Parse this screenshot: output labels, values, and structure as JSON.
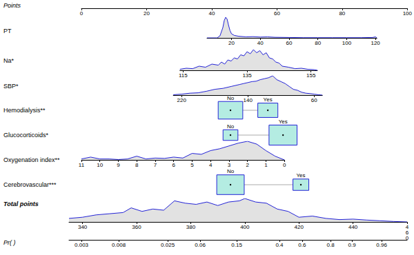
{
  "chart_data": {
    "type": "nomogram",
    "color": "#2323d6",
    "points_axis": {
      "label": "Points",
      "xlim": [
        0,
        100
      ],
      "xticks": [
        0,
        20,
        40,
        60,
        80,
        100
      ]
    },
    "variables": [
      {
        "label": "PT",
        "type": "continuous",
        "xlim": [
          3,
          121
        ],
        "xticks": [
          20,
          40,
          60,
          80,
          100,
          120
        ],
        "points": [
          38.0,
          89.4
        ],
        "density": {
          "x": [
            3,
            10,
            12,
            14,
            15,
            16,
            17,
            18,
            19,
            20,
            22,
            25,
            30,
            35,
            40,
            45,
            50,
            60,
            70,
            80,
            90,
            100,
            110,
            118,
            120,
            121
          ],
          "y": [
            0,
            0,
            0.1,
            0.5,
            0.85,
            1,
            0.9,
            0.6,
            0.35,
            0.2,
            0.12,
            0.08,
            0.05,
            0.06,
            0.04,
            0.05,
            0.03,
            0.02,
            0.01,
            0.01,
            0.01,
            0.01,
            0.01,
            0.02,
            0.05,
            0
          ]
        }
      },
      {
        "label": "Na*",
        "type": "continuous",
        "xlim": [
          114,
          157
        ],
        "xticks": [
          115,
          135,
          155
        ],
        "points": [
          29.8,
          71.4
        ],
        "density": {
          "x": [
            114,
            116,
            118,
            120,
            122,
            124,
            126,
            127,
            128,
            129,
            130,
            131,
            132,
            133,
            134,
            135,
            136,
            137,
            138,
            139,
            140,
            141,
            142,
            143,
            144,
            145,
            146,
            148,
            150,
            152,
            154,
            156,
            157
          ],
          "y": [
            0.05,
            0.1,
            0.08,
            0.2,
            0.15,
            0.3,
            0.25,
            0.4,
            0.3,
            0.5,
            0.45,
            0.6,
            0.55,
            0.75,
            0.7,
            0.9,
            0.8,
            1,
            0.85,
            0.95,
            0.75,
            0.85,
            0.6,
            0.55,
            0.4,
            0.35,
            0.2,
            0.15,
            0.08,
            0.1,
            0.05,
            0.03,
            0
          ]
        }
      },
      {
        "label": "SBP*",
        "type": "continuous",
        "xlim": [
          230,
          50
        ],
        "xticks": [
          220,
          140,
          60
        ],
        "points": [
          27.8,
          72.9
        ],
        "density": {
          "x": [
            230,
            220,
            210,
            200,
            190,
            180,
            170,
            160,
            150,
            145,
            140,
            135,
            130,
            125,
            120,
            115,
            110,
            105,
            100,
            95,
            90,
            85,
            80,
            75,
            70,
            65,
            60,
            55,
            50
          ],
          "y": [
            0.02,
            0.05,
            0.1,
            0.12,
            0.2,
            0.3,
            0.35,
            0.45,
            0.55,
            0.6,
            0.65,
            0.7,
            0.72,
            0.8,
            0.85,
            0.9,
            1,
            0.8,
            0.7,
            0.6,
            0.45,
            0.3,
            0.25,
            0.15,
            0.1,
            0.08,
            0.05,
            0.02,
            0
          ]
        }
      },
      {
        "label": "Hemodialysis**",
        "type": "categorical",
        "levels": [
          {
            "label": "No",
            "points": 45.1,
            "proportion": 0.6
          },
          {
            "label": "Yes",
            "points": 56.4,
            "proportion": 0.4
          }
        ]
      },
      {
        "label": "Glucocorticoids*",
        "type": "categorical",
        "levels": [
          {
            "label": "No",
            "points": 45.1,
            "proportion": 0.22
          },
          {
            "label": "Yes",
            "points": 61.0,
            "proportion": 0.78
          }
        ]
      },
      {
        "label": "Oxygenation index**",
        "type": "continuous",
        "xlim": [
          11,
          0
        ],
        "xticks": [
          11,
          10,
          9,
          8,
          7,
          6,
          5,
          4,
          3,
          2,
          1,
          0
        ],
        "points": [
          0,
          61.4
        ],
        "density": {
          "x": [
            11,
            10.5,
            10,
            9.5,
            9,
            8.5,
            8,
            7.5,
            7,
            6.5,
            6,
            5.5,
            5,
            4.5,
            4,
            3.5,
            3,
            2.5,
            2,
            1.5,
            1,
            0.5,
            0
          ],
          "y": [
            0.05,
            0.15,
            0.05,
            0.05,
            0.02,
            0.05,
            0.2,
            0.05,
            0.1,
            0.08,
            0.15,
            0.1,
            0.35,
            0.3,
            0.5,
            0.6,
            0.75,
            0.9,
            1,
            0.85,
            0.5,
            0.2,
            0
          ]
        }
      },
      {
        "label": "Cerebrovascular***",
        "type": "categorical",
        "levels": [
          {
            "label": "No",
            "points": 45.1,
            "proportion": 0.75
          },
          {
            "label": "Yes",
            "points": 66.4,
            "proportion": 0.25
          }
        ]
      }
    ],
    "total_points": {
      "label": "Total points",
      "xlim": [
        335,
        460
      ],
      "xticks": [
        340,
        360,
        380,
        400,
        420,
        440,
        {
          "value": 460,
          "label": "4\n6\n0"
        }
      ],
      "density": {
        "x": [
          335,
          340,
          345,
          350,
          355,
          358,
          362,
          366,
          370,
          374,
          378,
          382,
          386,
          390,
          394,
          398,
          400,
          404,
          408,
          412,
          416,
          420,
          425,
          430,
          435,
          440,
          445,
          450,
          455,
          460
        ],
        "y": [
          0.15,
          0.2,
          0.3,
          0.35,
          0.4,
          0.6,
          0.45,
          0.55,
          0.5,
          0.9,
          0.8,
          0.75,
          0.85,
          0.7,
          0.85,
          0.9,
          1,
          0.85,
          0.8,
          0.55,
          0.45,
          0.2,
          0.25,
          0.15,
          0.1,
          0.12,
          0.08,
          0.05,
          0.02,
          0
        ]
      }
    },
    "probability": {
      "label": "Pr( )",
      "ticks": [
        {
          "pr": 0.003,
          "total_points": 339.6
        },
        {
          "pr": 0.008,
          "total_points": 353.4
        },
        {
          "pr": 0.025,
          "total_points": 371.5
        },
        {
          "pr": 0.06,
          "total_points": 383.5
        },
        {
          "pr": 0.15,
          "total_points": 397.0
        },
        {
          "pr": 0.4,
          "total_points": 412.8
        },
        {
          "pr": 0.6,
          "total_points": 421.2
        },
        {
          "pr": 0.8,
          "total_points": 431.7
        },
        {
          "pr": 0.9,
          "total_points": 439.6
        },
        {
          "pr": 0.96,
          "total_points": 450.6
        }
      ]
    }
  }
}
